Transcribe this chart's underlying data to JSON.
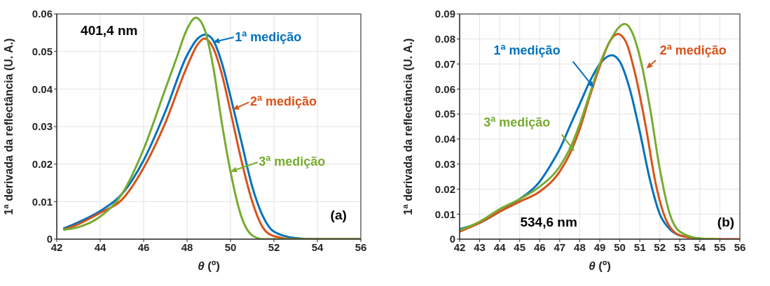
{
  "chart_data": [
    {
      "type": "line",
      "xlabel": "θ (º)",
      "ylabel": "1$^{a}$ derivada da reflectância (U. A.)",
      "xlim": [
        42,
        56
      ],
      "xticks": [
        42,
        44,
        46,
        48,
        50,
        52,
        54,
        56
      ],
      "ylim": [
        0,
        0.06
      ],
      "yticks": [
        0,
        0.01,
        0.02,
        0.03,
        0.04,
        0.05,
        0.06
      ],
      "grid": true,
      "legend": "top right",
      "line_style": "solid",
      "marker": "none",
      "annotations": [
        "401,4 nm",
        "(a)"
      ],
      "series": [
        {
          "name": "1$^{a}$ medição",
          "color": "#0072bd",
          "x": [
            42.3,
            43,
            44,
            45,
            46,
            47,
            48,
            48.5,
            48.85,
            49.2,
            49.6,
            50,
            50.5,
            51,
            51.5,
            52,
            53,
            54,
            56
          ],
          "values": [
            0.0028,
            0.0045,
            0.0075,
            0.012,
            0.021,
            0.034,
            0.049,
            0.0535,
            0.0545,
            0.053,
            0.047,
            0.038,
            0.026,
            0.014,
            0.006,
            0.002,
            0.0003,
            0,
            0
          ]
        },
        {
          "name": "2$^{a}$ medição",
          "color": "#d95319",
          "x": [
            42.3,
            43,
            44,
            45,
            46,
            47,
            48,
            48.5,
            48.8,
            49.2,
            49.6,
            50,
            50.5,
            51,
            51.5,
            52,
            53,
            56
          ],
          "values": [
            0.0025,
            0.004,
            0.007,
            0.0105,
            0.019,
            0.031,
            0.046,
            0.052,
            0.0535,
            0.051,
            0.044,
            0.034,
            0.021,
            0.01,
            0.003,
            0.0008,
            0,
            0
          ]
        },
        {
          "name": "3$^{a}$ medição",
          "color": "#77ac30",
          "x": [
            42.3,
            43,
            44,
            45,
            46,
            47,
            47.5,
            48,
            48.4,
            48.8,
            49.2,
            49.6,
            50,
            50.5,
            51,
            51.5,
            56
          ],
          "values": [
            0.0025,
            0.0032,
            0.006,
            0.012,
            0.024,
            0.04,
            0.048,
            0.056,
            0.059,
            0.056,
            0.046,
            0.031,
            0.018,
            0.006,
            0.001,
            0,
            0
          ]
        }
      ]
    },
    {
      "type": "line",
      "xlabel": "θ (º)",
      "ylabel": "1$^{a}$ derivada da reflectância (U. A.)",
      "xlim": [
        42,
        56
      ],
      "xticks": [
        42,
        43,
        44,
        45,
        46,
        47,
        48,
        49,
        50,
        51,
        52,
        53,
        54,
        55,
        56
      ],
      "ylim": [
        0,
        0.09
      ],
      "yticks": [
        0,
        0.01,
        0.02,
        0.03,
        0.04,
        0.05,
        0.06,
        0.07,
        0.08,
        0.09
      ],
      "grid": true,
      "line_style": "solid",
      "marker": "none",
      "annotations": [
        "534,6 nm",
        "(b)"
      ],
      "series": [
        {
          "name": "1$^{a}$ medição",
          "color": "#0072bd",
          "x": [
            42,
            43,
            44,
            45,
            46,
            46.5,
            47,
            47.5,
            48,
            48.5,
            49,
            49.3,
            49.6,
            50,
            50.5,
            51,
            51.5,
            52,
            52.5,
            53,
            54
          ],
          "values": [
            0.004,
            0.0065,
            0.011,
            0.016,
            0.023,
            0.029,
            0.036,
            0.045,
            0.054,
            0.063,
            0.07,
            0.0725,
            0.0735,
            0.071,
            0.06,
            0.043,
            0.024,
            0.01,
            0.004,
            0.0015,
            0.0003
          ]
        },
        {
          "name": "2$^{a}$ medição",
          "color": "#d95319",
          "x": [
            42,
            43,
            44,
            45,
            46,
            47,
            47.5,
            48,
            48.5,
            49,
            49.5,
            49.9,
            50.3,
            50.8,
            51.3,
            51.8,
            52.3,
            53,
            54,
            55,
            56
          ],
          "values": [
            0.003,
            0.0065,
            0.011,
            0.015,
            0.019,
            0.027,
            0.034,
            0.044,
            0.057,
            0.069,
            0.079,
            0.082,
            0.079,
            0.065,
            0.045,
            0.022,
            0.008,
            0.0015,
            0.0002,
            0,
            0
          ]
        },
        {
          "name": "3$^{a}$ medição",
          "color": "#77ac30",
          "x": [
            42,
            43,
            44,
            45,
            46,
            47,
            47.5,
            48,
            48.5,
            49,
            49.5,
            50,
            50.25,
            50.6,
            51,
            51.5,
            52,
            52.5,
            53,
            54,
            55
          ],
          "values": [
            0.0035,
            0.007,
            0.012,
            0.016,
            0.021,
            0.029,
            0.036,
            0.046,
            0.058,
            0.07,
            0.079,
            0.085,
            0.086,
            0.083,
            0.073,
            0.053,
            0.028,
            0.01,
            0.003,
            0.0003,
            0
          ]
        }
      ]
    }
  ]
}
